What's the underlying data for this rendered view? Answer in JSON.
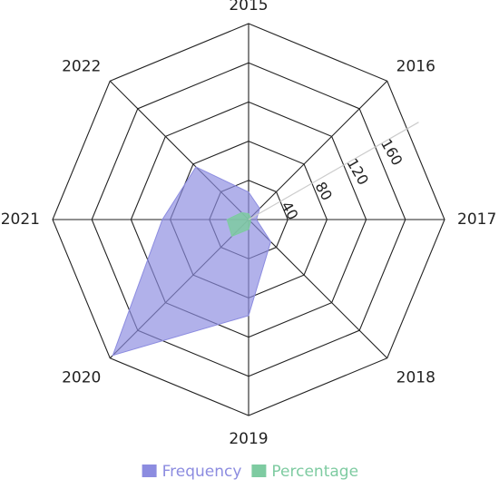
{
  "chart_data": {
    "type": "radar",
    "categories": [
      "2015",
      "2016",
      "2017",
      "2018",
      "2019",
      "2020",
      "2021",
      "2022"
    ],
    "series": [
      {
        "name": "Frequency",
        "color": "#8c8ce0",
        "values": [
          28,
          16,
          8,
          32,
          98,
          196,
          88,
          76
        ]
      },
      {
        "name": "Percentage",
        "color": "#7ecba1",
        "values": [
          6,
          3,
          2,
          3,
          10,
          24,
          22,
          10
        ]
      }
    ],
    "radial_ticks": [
      "40",
      "80",
      "120",
      "160"
    ],
    "radial_range": [
      0,
      200
    ],
    "grid": true,
    "legend_position": "bottom"
  },
  "colors": {
    "grid": "#222222",
    "tick_axis": "#cccccc"
  }
}
